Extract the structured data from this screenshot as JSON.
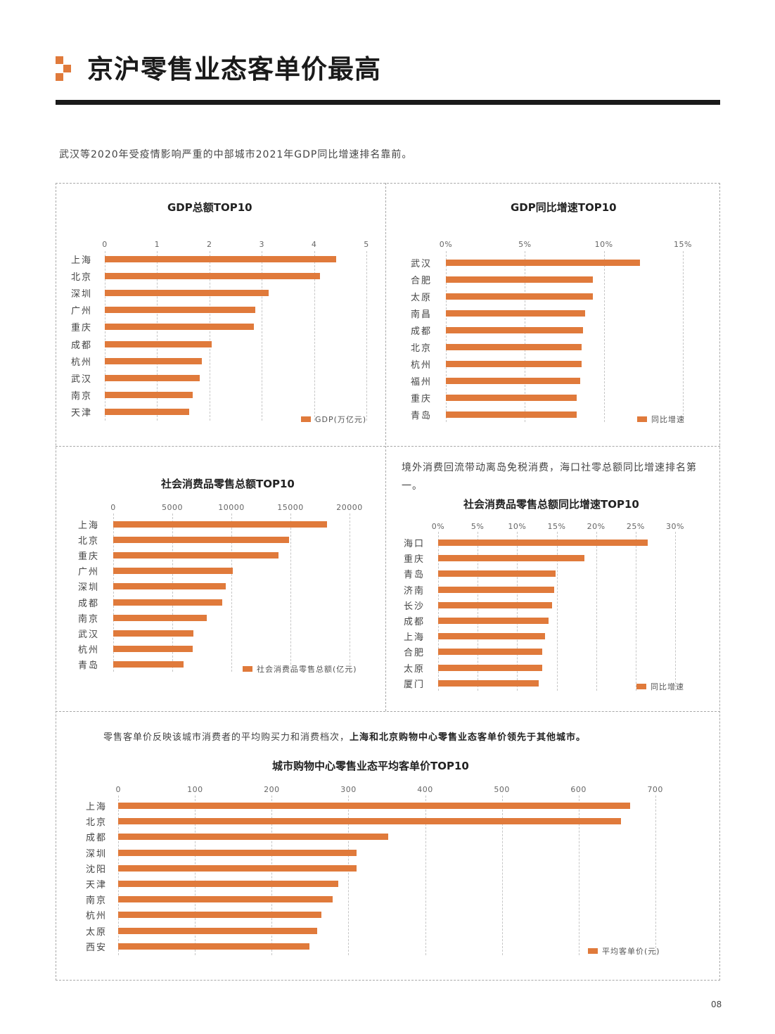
{
  "header": {
    "title": "京沪零售业态客单价最高",
    "accent_color": "#e07a3b",
    "rule_color": "#1a1a1a"
  },
  "intro_text": "武汉等2020年受疫情影响严重的中部城市2021年GDP同比增速排名靠前。",
  "panels": {
    "gdp_total": {
      "title": "GDP总额TOP10",
      "legend": "GDP(万亿元)",
      "ticks": [
        "0",
        "1",
        "2",
        "3",
        "4",
        "5"
      ]
    },
    "gdp_growth": {
      "title": "GDP同比增速TOP10",
      "legend": "同比增速",
      "ticks": [
        "0%",
        "5%",
        "10%",
        "15%"
      ]
    },
    "retail_total": {
      "title": "社会消费品零售总额TOP10",
      "legend": "社会消费品零售总额(亿元)",
      "ticks": [
        "0",
        "5000",
        "10000",
        "15000",
        "20000"
      ]
    },
    "retail_growth": {
      "note": "境外消费回流带动离岛免税消费，海口社零总额同比增速排名第一。",
      "title": "社会消费品零售总额同比增速TOP10",
      "legend": "同比增速",
      "ticks": [
        "0%",
        "5%",
        "10%",
        "15%",
        "20%",
        "25%",
        "30%"
      ]
    },
    "avg_ticket": {
      "note_plain": "零售客单价反映该城市消费者的平均购买力和消费档次，",
      "note_bold": "上海和北京购物中心零售业态客单价领先于其他城市。",
      "title": "城市购物中心零售业态平均客单价TOP10",
      "legend": "平均客单价(元)",
      "ticks": [
        "0",
        "100",
        "200",
        "300",
        "400",
        "500",
        "600",
        "700"
      ]
    }
  },
  "page_number": "08",
  "chart_data": [
    {
      "type": "bar",
      "orientation": "horizontal",
      "title": "GDP总额TOP10",
      "categories": [
        "上海",
        "北京",
        "深圳",
        "广州",
        "重庆",
        "成都",
        "杭州",
        "武汉",
        "南京",
        "天津"
      ],
      "series": [
        {
          "name": "GDP(万亿元)",
          "values": [
            4.42,
            4.11,
            3.13,
            2.88,
            2.85,
            2.04,
            1.85,
            1.81,
            1.68,
            1.61
          ]
        }
      ],
      "xlabel": "",
      "ylabel": "",
      "xlim": [
        0,
        5
      ],
      "grid": true,
      "legend_position": "bottom-right"
    },
    {
      "type": "bar",
      "orientation": "horizontal",
      "title": "GDP同比增速TOP10",
      "categories": [
        "武汉",
        "合肥",
        "太原",
        "南昌",
        "成都",
        "北京",
        "杭州",
        "福州",
        "重庆",
        "青岛"
      ],
      "series": [
        {
          "name": "同比增速",
          "values": [
            12.3,
            9.3,
            9.3,
            8.8,
            8.7,
            8.6,
            8.6,
            8.5,
            8.3,
            8.3
          ]
        }
      ],
      "unit": "%",
      "xlim": [
        0,
        15
      ],
      "grid": true,
      "legend_position": "bottom-right"
    },
    {
      "type": "bar",
      "orientation": "horizontal",
      "title": "社会消费品零售总额TOP10",
      "categories": [
        "上海",
        "北京",
        "重庆",
        "广州",
        "深圳",
        "成都",
        "南京",
        "武汉",
        "杭州",
        "青岛"
      ],
      "series": [
        {
          "name": "社会消费品零售总额(亿元)",
          "values": [
            18079,
            14868,
            13968,
            10122,
            9498,
            9251,
            7899,
            6795,
            6744,
            5975
          ]
        }
      ],
      "xlim": [
        0,
        20000
      ],
      "grid": true,
      "legend_position": "bottom-right"
    },
    {
      "type": "bar",
      "orientation": "horizontal",
      "title": "社会消费品零售总额同比增速TOP10",
      "categories": [
        "海口",
        "重庆",
        "青岛",
        "济南",
        "长沙",
        "成都",
        "上海",
        "合肥",
        "太原",
        "厦门"
      ],
      "series": [
        {
          "name": "同比增速",
          "values": [
            26.5,
            18.5,
            14.9,
            14.7,
            14.4,
            14.0,
            13.5,
            13.2,
            13.2,
            12.7
          ]
        }
      ],
      "unit": "%",
      "xlim": [
        0,
        30
      ],
      "grid": true,
      "legend_position": "bottom-right"
    },
    {
      "type": "bar",
      "orientation": "horizontal",
      "title": "城市购物中心零售业态平均客单价TOP10",
      "categories": [
        "上海",
        "北京",
        "成都",
        "深圳",
        "沈阳",
        "天津",
        "南京",
        "杭州",
        "太原",
        "西安"
      ],
      "series": [
        {
          "name": "平均客单价(元)",
          "values": [
            667,
            655,
            352,
            311,
            311,
            287,
            279,
            265,
            259,
            249
          ]
        }
      ],
      "xlim": [
        0,
        700
      ],
      "grid": true,
      "legend_position": "bottom-right"
    }
  ]
}
